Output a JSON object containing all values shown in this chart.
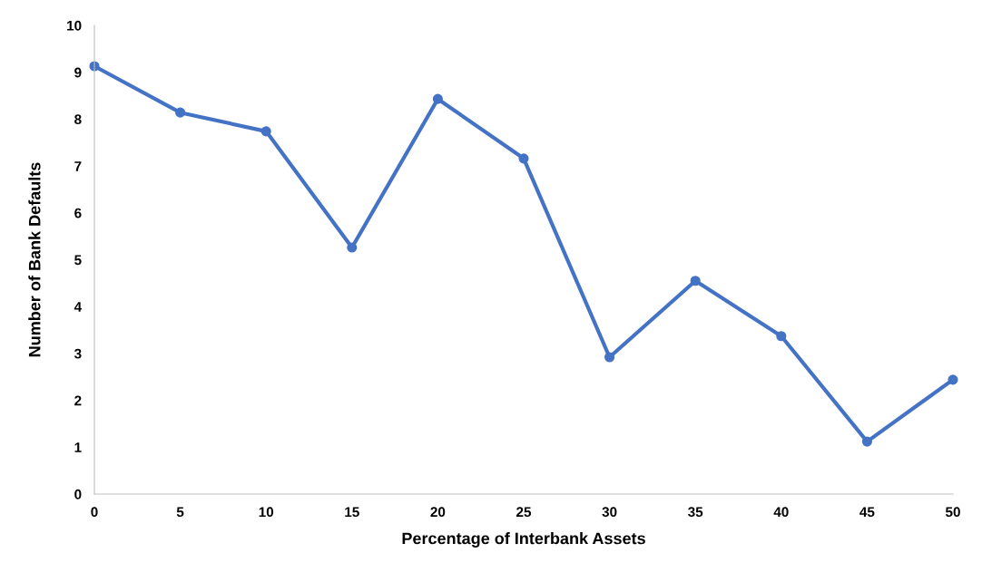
{
  "chart_data": {
    "type": "line",
    "xlabel": "Percentage of Interbank Assets",
    "ylabel": "Number of Bank Defaults",
    "x": [
      0,
      5,
      10,
      15,
      20,
      25,
      30,
      35,
      40,
      45,
      50
    ],
    "series": [
      {
        "color": "#4472c4",
        "values": [
          9.13,
          8.14,
          7.74,
          5.26,
          8.43,
          7.16,
          2.92,
          4.55,
          3.37,
          1.12,
          2.44
        ]
      }
    ],
    "xlim": [
      0,
      50
    ],
    "xticks": [
      0,
      5,
      10,
      15,
      20,
      25,
      30,
      35,
      40,
      45,
      50
    ],
    "ylim": [
      0,
      10
    ],
    "yticks": [
      0,
      1,
      2,
      3,
      4,
      5,
      6,
      7,
      8,
      9,
      10
    ],
    "grid": false,
    "legend": false,
    "marker": "circle",
    "line_style": "solid"
  }
}
